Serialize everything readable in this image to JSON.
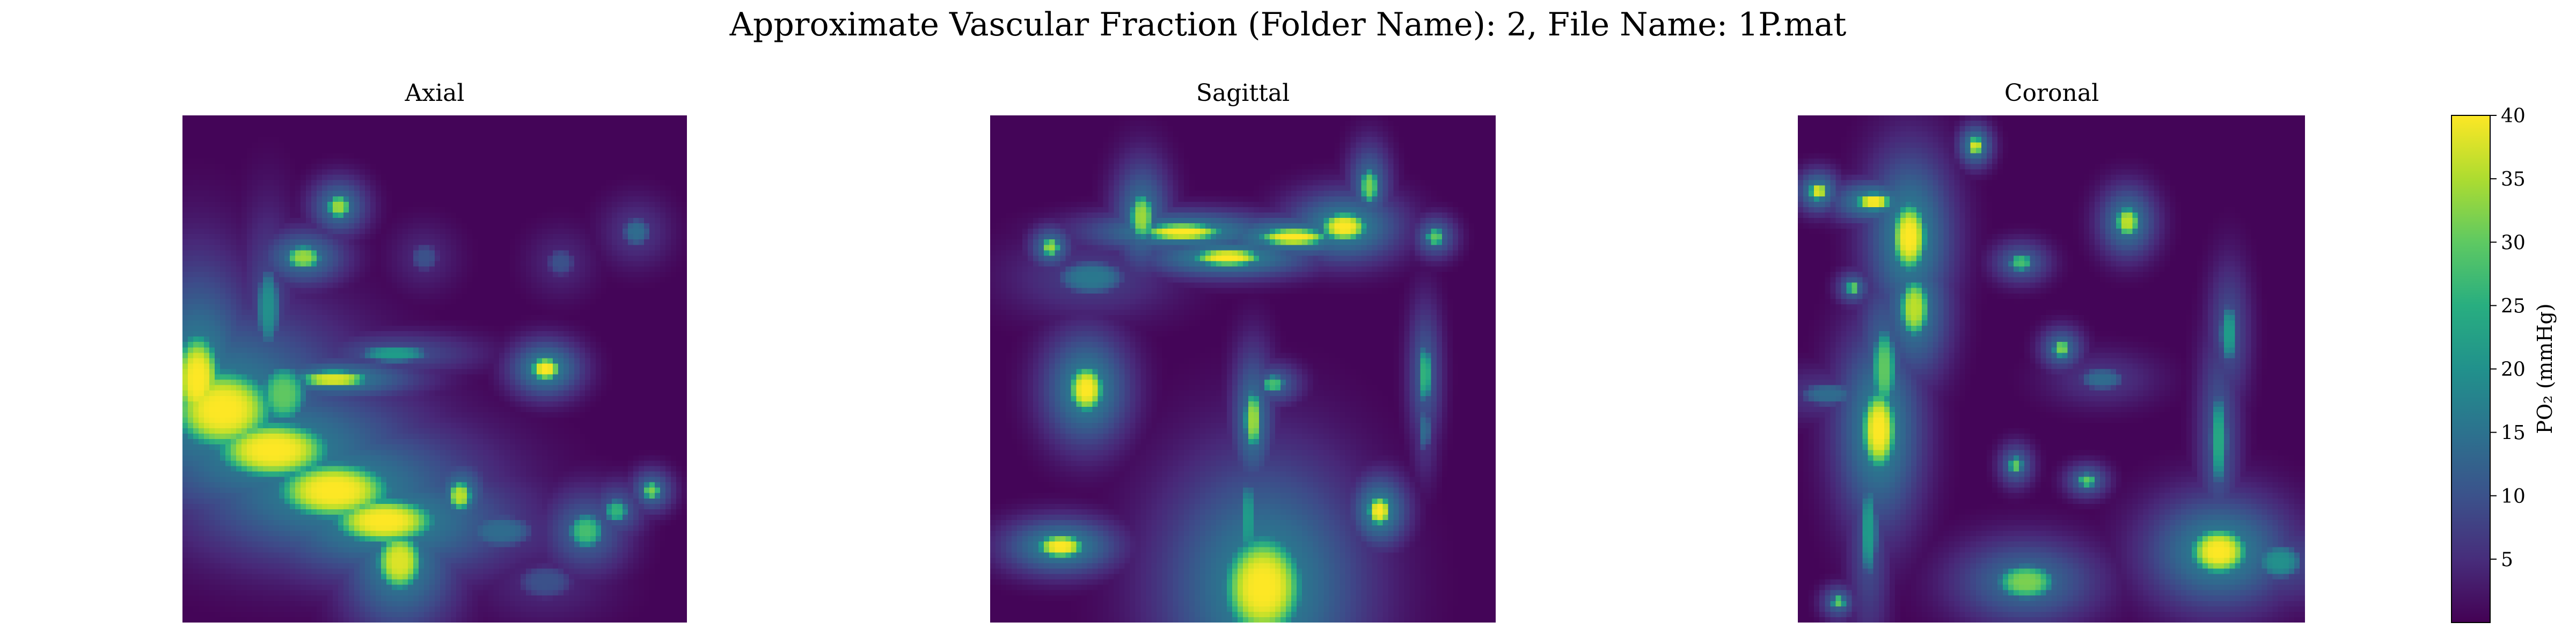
{
  "figure": {
    "suptitle": "Approximate Vascular Fraction (Folder Name): 2, File Name: 1P.mat",
    "colormap": "viridis",
    "colors": {
      "low": "#440154",
      "high": "#fde725",
      "background": "#ffffff"
    }
  },
  "chart_data": [
    {
      "type": "heatmap",
      "title": "Axial",
      "vmin": 0,
      "vmax": 40,
      "background_value": 0.5,
      "blobs": [
        {
          "x": 0.08,
          "y": 0.58,
          "rx": 0.09,
          "ry": 0.07,
          "v": 40
        },
        {
          "x": 0.18,
          "y": 0.66,
          "rx": 0.1,
          "ry": 0.05,
          "v": 40
        },
        {
          "x": 0.3,
          "y": 0.74,
          "rx": 0.1,
          "ry": 0.05,
          "v": 40
        },
        {
          "x": 0.4,
          "y": 0.8,
          "rx": 0.09,
          "ry": 0.04,
          "v": 40
        },
        {
          "x": 0.43,
          "y": 0.88,
          "rx": 0.04,
          "ry": 0.05,
          "v": 38
        },
        {
          "x": 0.03,
          "y": 0.52,
          "rx": 0.04,
          "ry": 0.08,
          "v": 40
        },
        {
          "x": 0.2,
          "y": 0.55,
          "rx": 0.04,
          "ry": 0.05,
          "v": 30
        },
        {
          "x": 0.3,
          "y": 0.52,
          "rx": 0.06,
          "ry": 0.015,
          "v": 38
        },
        {
          "x": 0.42,
          "y": 0.47,
          "rx": 0.06,
          "ry": 0.015,
          "v": 22
        },
        {
          "x": 0.17,
          "y": 0.38,
          "rx": 0.02,
          "ry": 0.07,
          "v": 20
        },
        {
          "x": 0.24,
          "y": 0.28,
          "rx": 0.03,
          "ry": 0.02,
          "v": 34
        },
        {
          "x": 0.31,
          "y": 0.18,
          "rx": 0.02,
          "ry": 0.02,
          "v": 34
        },
        {
          "x": 0.48,
          "y": 0.28,
          "rx": 0.025,
          "ry": 0.025,
          "v": 10
        },
        {
          "x": 0.75,
          "y": 0.29,
          "rx": 0.025,
          "ry": 0.025,
          "v": 10
        },
        {
          "x": 0.9,
          "y": 0.23,
          "rx": 0.025,
          "ry": 0.025,
          "v": 14
        },
        {
          "x": 0.72,
          "y": 0.5,
          "rx": 0.025,
          "ry": 0.02,
          "v": 40
        },
        {
          "x": 0.55,
          "y": 0.75,
          "rx": 0.02,
          "ry": 0.025,
          "v": 36
        },
        {
          "x": 0.63,
          "y": 0.82,
          "rx": 0.06,
          "ry": 0.03,
          "v": 14
        },
        {
          "x": 0.8,
          "y": 0.82,
          "rx": 0.03,
          "ry": 0.03,
          "v": 28
        },
        {
          "x": 0.86,
          "y": 0.78,
          "rx": 0.02,
          "ry": 0.02,
          "v": 26
        },
        {
          "x": 0.93,
          "y": 0.74,
          "rx": 0.015,
          "ry": 0.015,
          "v": 32
        },
        {
          "x": 0.72,
          "y": 0.92,
          "rx": 0.05,
          "ry": 0.03,
          "v": 10
        }
      ]
    },
    {
      "type": "heatmap",
      "title": "Sagittal",
      "vmin": 0,
      "vmax": 40,
      "background_value": 0.5,
      "blobs": [
        {
          "x": 0.3,
          "y": 0.2,
          "rx": 0.02,
          "ry": 0.04,
          "v": 34
        },
        {
          "x": 0.38,
          "y": 0.23,
          "rx": 0.07,
          "ry": 0.015,
          "v": 40
        },
        {
          "x": 0.47,
          "y": 0.28,
          "rx": 0.06,
          "ry": 0.015,
          "v": 40
        },
        {
          "x": 0.6,
          "y": 0.24,
          "rx": 0.06,
          "ry": 0.015,
          "v": 40
        },
        {
          "x": 0.7,
          "y": 0.22,
          "rx": 0.04,
          "ry": 0.025,
          "v": 40
        },
        {
          "x": 0.75,
          "y": 0.14,
          "rx": 0.015,
          "ry": 0.03,
          "v": 32
        },
        {
          "x": 0.12,
          "y": 0.26,
          "rx": 0.015,
          "ry": 0.015,
          "v": 34
        },
        {
          "x": 0.88,
          "y": 0.24,
          "rx": 0.015,
          "ry": 0.015,
          "v": 30
        },
        {
          "x": 0.2,
          "y": 0.32,
          "rx": 0.06,
          "ry": 0.03,
          "v": 16
        },
        {
          "x": 0.19,
          "y": 0.54,
          "rx": 0.03,
          "ry": 0.04,
          "v": 40
        },
        {
          "x": 0.14,
          "y": 0.85,
          "rx": 0.04,
          "ry": 0.02,
          "v": 40
        },
        {
          "x": 0.54,
          "y": 0.93,
          "rx": 0.07,
          "ry": 0.09,
          "v": 40
        },
        {
          "x": 0.51,
          "y": 0.8,
          "rx": 0.015,
          "ry": 0.07,
          "v": 22
        },
        {
          "x": 0.52,
          "y": 0.6,
          "rx": 0.015,
          "ry": 0.05,
          "v": 34
        },
        {
          "x": 0.56,
          "y": 0.53,
          "rx": 0.02,
          "ry": 0.015,
          "v": 28
        },
        {
          "x": 0.77,
          "y": 0.78,
          "rx": 0.02,
          "ry": 0.025,
          "v": 40
        },
        {
          "x": 0.86,
          "y": 0.51,
          "rx": 0.012,
          "ry": 0.05,
          "v": 26
        },
        {
          "x": 0.86,
          "y": 0.62,
          "rx": 0.01,
          "ry": 0.04,
          "v": 14
        }
      ]
    },
    {
      "type": "heatmap",
      "title": "Coronal",
      "vmin": 0,
      "vmax": 40,
      "background_value": 0.5,
      "blobs": [
        {
          "x": 0.15,
          "y": 0.17,
          "rx": 0.03,
          "ry": 0.015,
          "v": 40
        },
        {
          "x": 0.22,
          "y": 0.24,
          "rx": 0.03,
          "ry": 0.06,
          "v": 40
        },
        {
          "x": 0.23,
          "y": 0.38,
          "rx": 0.025,
          "ry": 0.05,
          "v": 36
        },
        {
          "x": 0.17,
          "y": 0.5,
          "rx": 0.02,
          "ry": 0.07,
          "v": 30
        },
        {
          "x": 0.16,
          "y": 0.62,
          "rx": 0.03,
          "ry": 0.07,
          "v": 40
        },
        {
          "x": 0.14,
          "y": 0.82,
          "rx": 0.015,
          "ry": 0.08,
          "v": 22
        },
        {
          "x": 0.04,
          "y": 0.15,
          "rx": 0.015,
          "ry": 0.015,
          "v": 38
        },
        {
          "x": 0.35,
          "y": 0.06,
          "rx": 0.012,
          "ry": 0.015,
          "v": 38
        },
        {
          "x": 0.06,
          "y": 0.55,
          "rx": 0.05,
          "ry": 0.02,
          "v": 14
        },
        {
          "x": 0.11,
          "y": 0.34,
          "rx": 0.012,
          "ry": 0.012,
          "v": 30
        },
        {
          "x": 0.44,
          "y": 0.29,
          "rx": 0.02,
          "ry": 0.015,
          "v": 28
        },
        {
          "x": 0.65,
          "y": 0.21,
          "rx": 0.02,
          "ry": 0.025,
          "v": 36
        },
        {
          "x": 0.52,
          "y": 0.46,
          "rx": 0.015,
          "ry": 0.015,
          "v": 32
        },
        {
          "x": 0.6,
          "y": 0.52,
          "rx": 0.04,
          "ry": 0.02,
          "v": 14
        },
        {
          "x": 0.43,
          "y": 0.69,
          "rx": 0.012,
          "ry": 0.015,
          "v": 30
        },
        {
          "x": 0.57,
          "y": 0.72,
          "rx": 0.015,
          "ry": 0.012,
          "v": 30
        },
        {
          "x": 0.45,
          "y": 0.92,
          "rx": 0.05,
          "ry": 0.03,
          "v": 32
        },
        {
          "x": 0.08,
          "y": 0.96,
          "rx": 0.012,
          "ry": 0.012,
          "v": 30
        },
        {
          "x": 0.85,
          "y": 0.43,
          "rx": 0.015,
          "ry": 0.05,
          "v": 22
        },
        {
          "x": 0.83,
          "y": 0.64,
          "rx": 0.015,
          "ry": 0.08,
          "v": 24
        },
        {
          "x": 0.83,
          "y": 0.86,
          "rx": 0.05,
          "ry": 0.04,
          "v": 40
        },
        {
          "x": 0.95,
          "y": 0.88,
          "rx": 0.04,
          "ry": 0.03,
          "v": 20
        }
      ]
    }
  ],
  "colorbar": {
    "label": "PO₂ (mmHg)",
    "ticks": [
      5,
      10,
      15,
      20,
      25,
      30,
      35,
      40
    ],
    "vmin": 0,
    "vmax": 40
  }
}
